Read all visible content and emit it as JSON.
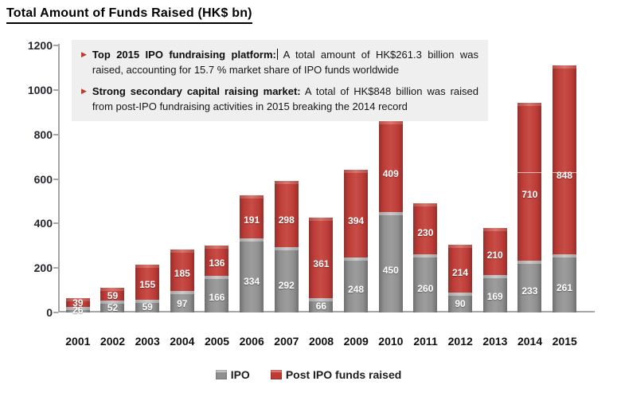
{
  "title": "Total Amount of Funds Raised (HK$ bn)",
  "info_box": {
    "bg_color": "#efefef",
    "bullet_color": "#c0392b",
    "bullet_glyph": "▶",
    "bullets": [
      {
        "bold": "Top 2015 IPO fundraising platform:",
        "text": " A total amount of HK$261.3 billion was raised, accounting for 15.7 % market share of IPO funds worldwide",
        "cursor": true
      },
      {
        "bold": "Strong secondary capital raising market:",
        "text": " A total of HK$848 billion was raised from post-IPO fundraising activities in 2015 breaking the 2014 record",
        "cursor": false
      }
    ]
  },
  "chart_data": {
    "type": "bar",
    "stacked": true,
    "title": "Total Amount of Funds Raised (HK$ bn)",
    "categories": [
      "2001",
      "2002",
      "2003",
      "2004",
      "2005",
      "2006",
      "2007",
      "2008",
      "2009",
      "2010",
      "2011",
      "2012",
      "2013",
      "2014",
      "2015"
    ],
    "series": [
      {
        "name": "IPO",
        "color": "#8f8f8f",
        "color_light": "#c6c6c6",
        "values": [
          26,
          52,
          59,
          97,
          166,
          334,
          292,
          66,
          248,
          450,
          260,
          90,
          169,
          233,
          261
        ]
      },
      {
        "name": "Post IPO funds raised",
        "color": "#be3b36",
        "color_light": "#dd7a72",
        "values": [
          39,
          59,
          155,
          185,
          136,
          191,
          298,
          361,
          394,
          409,
          230,
          214,
          210,
          710,
          848
        ]
      }
    ],
    "ylim": [
      0,
      1200
    ],
    "yticks": [
      0,
      200,
      400,
      600,
      800,
      1000,
      1200
    ],
    "grid": false,
    "legend_position": "bottom",
    "bar_label_color": "#ffffff",
    "axis_color": "#a6a6a6"
  }
}
